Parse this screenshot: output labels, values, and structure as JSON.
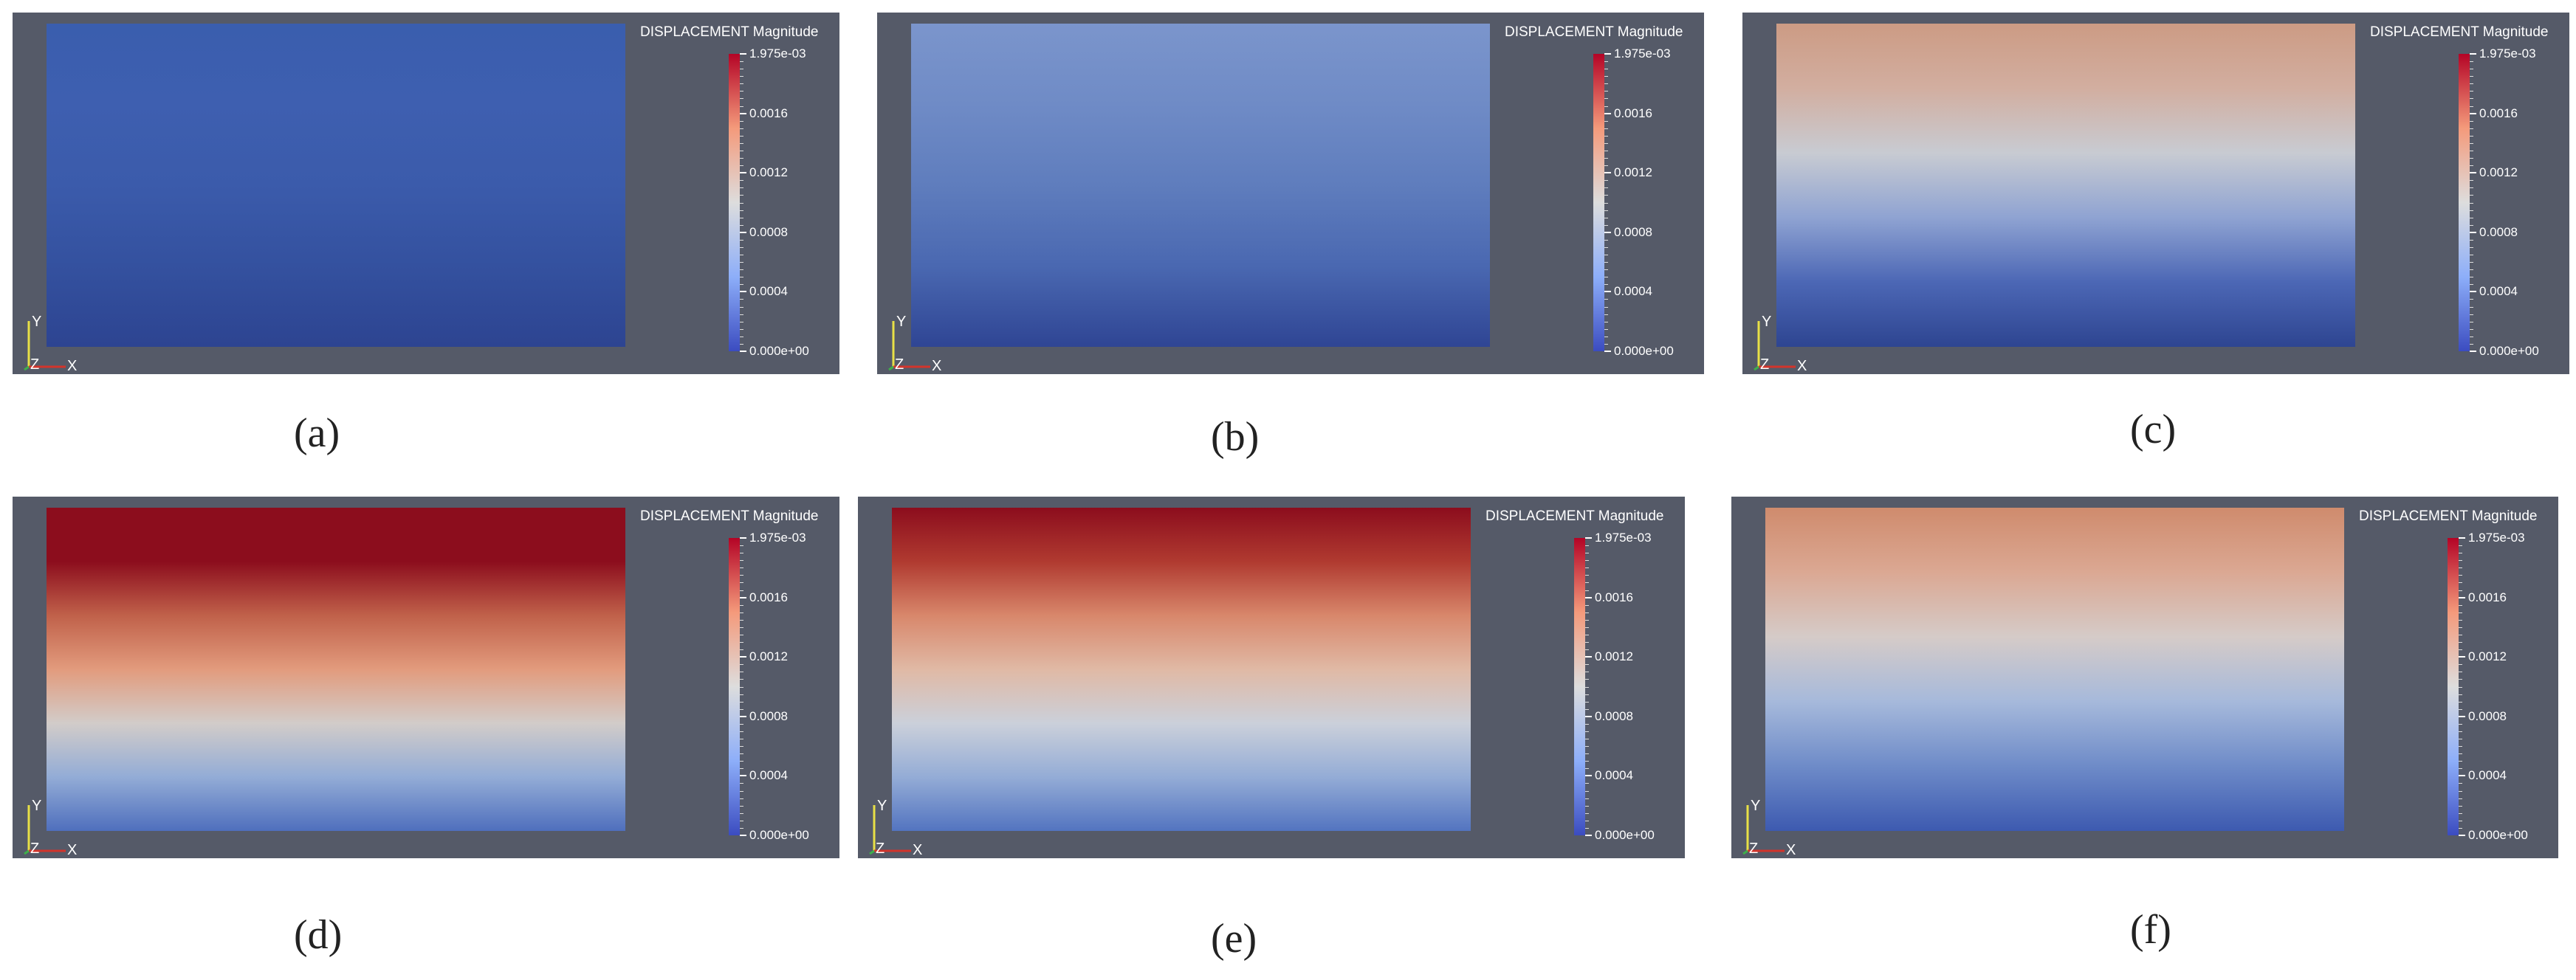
{
  "figure": {
    "panels": [
      {
        "caption": "(a)",
        "colorbar_title": "DISPLACEMENT Magnitude",
        "plate_colors": [
          "#3a5eae",
          "#3e5fb0",
          "#3b5bab",
          "#34519f",
          "#2d4491"
        ]
      },
      {
        "caption": "(b)",
        "colorbar_title": "DISPLACEMENT Magnitude",
        "plate_colors": [
          "#7b95cc",
          "#6f8bc6",
          "#5f7dbd",
          "#4a68b1",
          "#2f4594"
        ]
      },
      {
        "caption": "(c)",
        "colorbar_title": "DISPLACEMENT Magnitude",
        "plate_colors": [
          "#cc9b84",
          "#d2aea0",
          "#c8cbd2",
          "#8fa3d2",
          "#4c67b5",
          "#2e4591"
        ]
      },
      {
        "caption": "(d)",
        "colorbar_title": "DISPLACEMENT Magnitude",
        "plate_colors": [
          "#8c0d1d",
          "#8c0d1d",
          "#c0614a",
          "#e29b7d",
          "#d2ccc9",
          "#93acd6",
          "#4f6fbd"
        ]
      },
      {
        "caption": "(e)",
        "colorbar_title": "DISPLACEMENT Magnitude",
        "plate_colors": [
          "#8c0d1d",
          "#b03a30",
          "#d8876b",
          "#e0b9a5",
          "#cbd0da",
          "#94acd6",
          "#5374c0"
        ]
      },
      {
        "caption": "(f)",
        "colorbar_title": "DISPLACEMENT Magnitude",
        "plate_colors": [
          "#cf8b6d",
          "#dba893",
          "#d5cbc8",
          "#a6b9db",
          "#6e8bc8",
          "#3d5ab0"
        ]
      }
    ],
    "colorbar_ticks": [
      "1.975e-03",
      "0.0016",
      "0.0012",
      "0.0008",
      "0.0004",
      "0.000e+00"
    ],
    "colorbar_range": [
      0,
      0.001975
    ],
    "axis_labels": {
      "x": "X",
      "y": "Y",
      "z": "Z"
    },
    "colors": {
      "background": "#555a68",
      "x_axis": "#d2342b",
      "y_axis": "#e8e046",
      "z_axis": "#3fae4a"
    }
  }
}
